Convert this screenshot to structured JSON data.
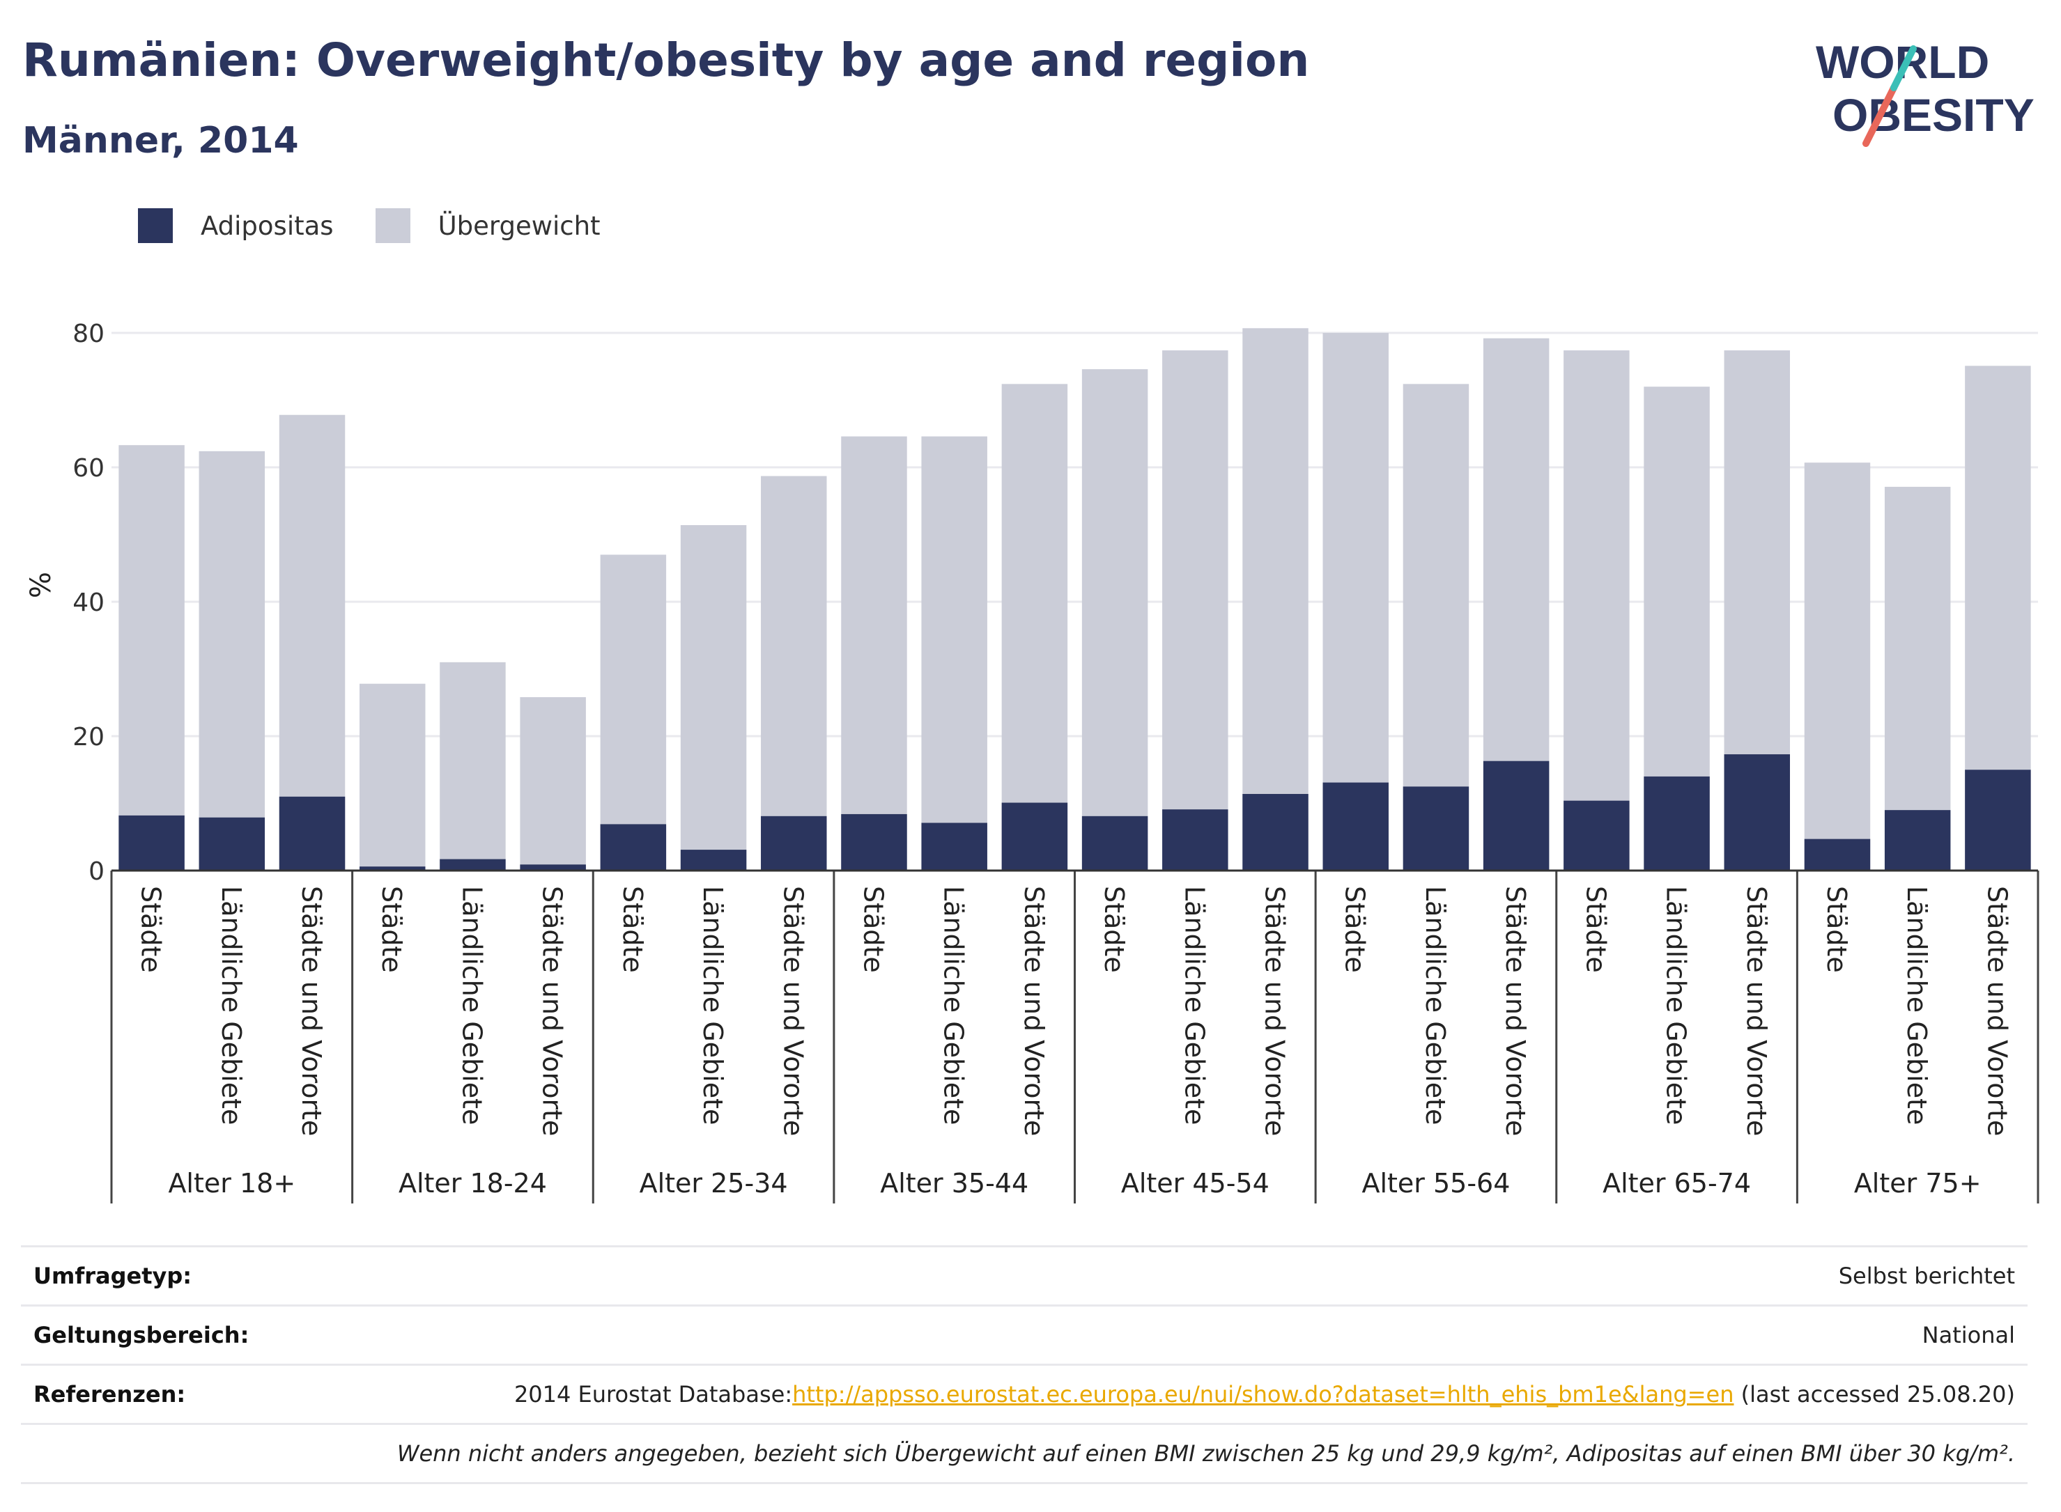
{
  "header": {
    "title": "Rumänien: Overweight/obesity by age and region",
    "subtitle": "Männer, 2014"
  },
  "logo": {
    "line1": "WORLD",
    "line2": "OBESITY"
  },
  "colors": {
    "obesity": "#2b355e",
    "overweight": "#cbcdd8",
    "accent_red": "#e8675a",
    "accent_teal": "#3bbfb7"
  },
  "chart_data": {
    "type": "bar",
    "stacked": true,
    "ylabel": "%",
    "ylim": [
      0,
      85
    ],
    "yticks": [
      0,
      20,
      40,
      60,
      80
    ],
    "grid": true,
    "legend_position": "top-left",
    "series": [
      {
        "name": "Adipositas",
        "color": "#2b355e"
      },
      {
        "name": "Übergewicht",
        "color": "#cbcdd8"
      }
    ],
    "groups": [
      {
        "label": "Alter 18+",
        "bars": [
          {
            "label": "Städte",
            "obesity": 8.2,
            "total": 63.3
          },
          {
            "label": "Ländliche Gebiete",
            "obesity": 7.9,
            "total": 62.4
          },
          {
            "label": "Städte und Vororte",
            "obesity": 11.0,
            "total": 67.8
          }
        ]
      },
      {
        "label": "Alter 18-24",
        "bars": [
          {
            "label": "Städte",
            "obesity": 0.6,
            "total": 27.8
          },
          {
            "label": "Ländliche Gebiete",
            "obesity": 1.7,
            "total": 31.0
          },
          {
            "label": "Städte und Vororte",
            "obesity": 0.9,
            "total": 25.8
          }
        ]
      },
      {
        "label": "Alter 25-34",
        "bars": [
          {
            "label": "Städte",
            "obesity": 6.9,
            "total": 47.0
          },
          {
            "label": "Ländliche Gebiete",
            "obesity": 3.1,
            "total": 51.4
          },
          {
            "label": "Städte und Vororte",
            "obesity": 8.1,
            "total": 58.7
          }
        ]
      },
      {
        "label": "Alter 35-44",
        "bars": [
          {
            "label": "Städte",
            "obesity": 8.4,
            "total": 64.6
          },
          {
            "label": "Ländliche Gebiete",
            "obesity": 7.1,
            "total": 64.6
          },
          {
            "label": "Städte und Vororte",
            "obesity": 10.1,
            "total": 72.4
          }
        ]
      },
      {
        "label": "Alter 45-54",
        "bars": [
          {
            "label": "Städte",
            "obesity": 8.1,
            "total": 74.6
          },
          {
            "label": "Ländliche Gebiete",
            "obesity": 9.1,
            "total": 77.4
          },
          {
            "label": "Städte und Vororte",
            "obesity": 11.4,
            "total": 80.7
          }
        ]
      },
      {
        "label": "Alter 55-64",
        "bars": [
          {
            "label": "Städte",
            "obesity": 13.1,
            "total": 80.0
          },
          {
            "label": "Ländliche Gebiete",
            "obesity": 12.5,
            "total": 72.4
          },
          {
            "label": "Städte und Vororte",
            "obesity": 16.3,
            "total": 79.2
          }
        ]
      },
      {
        "label": "Alter 65-74",
        "bars": [
          {
            "label": "Städte",
            "obesity": 10.4,
            "total": 77.4
          },
          {
            "label": "Ländliche Gebiete",
            "obesity": 14.0,
            "total": 72.0
          },
          {
            "label": "Städte und Vororte",
            "obesity": 17.3,
            "total": 77.4
          }
        ]
      },
      {
        "label": "Alter 75+",
        "bars": [
          {
            "label": "Städte",
            "obesity": 4.7,
            "total": 60.7
          },
          {
            "label": "Ländliche Gebiete",
            "obesity": 9.0,
            "total": 57.1
          },
          {
            "label": "Städte und Vororte",
            "obesity": 15.0,
            "total": 75.1
          }
        ]
      }
    ]
  },
  "meta": {
    "survey_type": {
      "label": "Umfragetyp:",
      "value": "Selbst berichtet"
    },
    "scope": {
      "label": "Geltungsbereich:",
      "value": "National"
    },
    "references": {
      "label": "Referenzen:",
      "prefix": "2014 Eurostat Database:",
      "link": "http://appsso.eurostat.ec.europa.eu/nui/show.do?dataset=hlth_ehis_bm1e&lang=en",
      "suffix": " (last accessed 25.08.20)"
    },
    "note": "Wenn nicht anders angegeben, bezieht sich Übergewicht auf einen BMI zwischen 25 kg und 29,9 kg/m², Adipositas auf einen BMI über 30 kg/m²."
  }
}
